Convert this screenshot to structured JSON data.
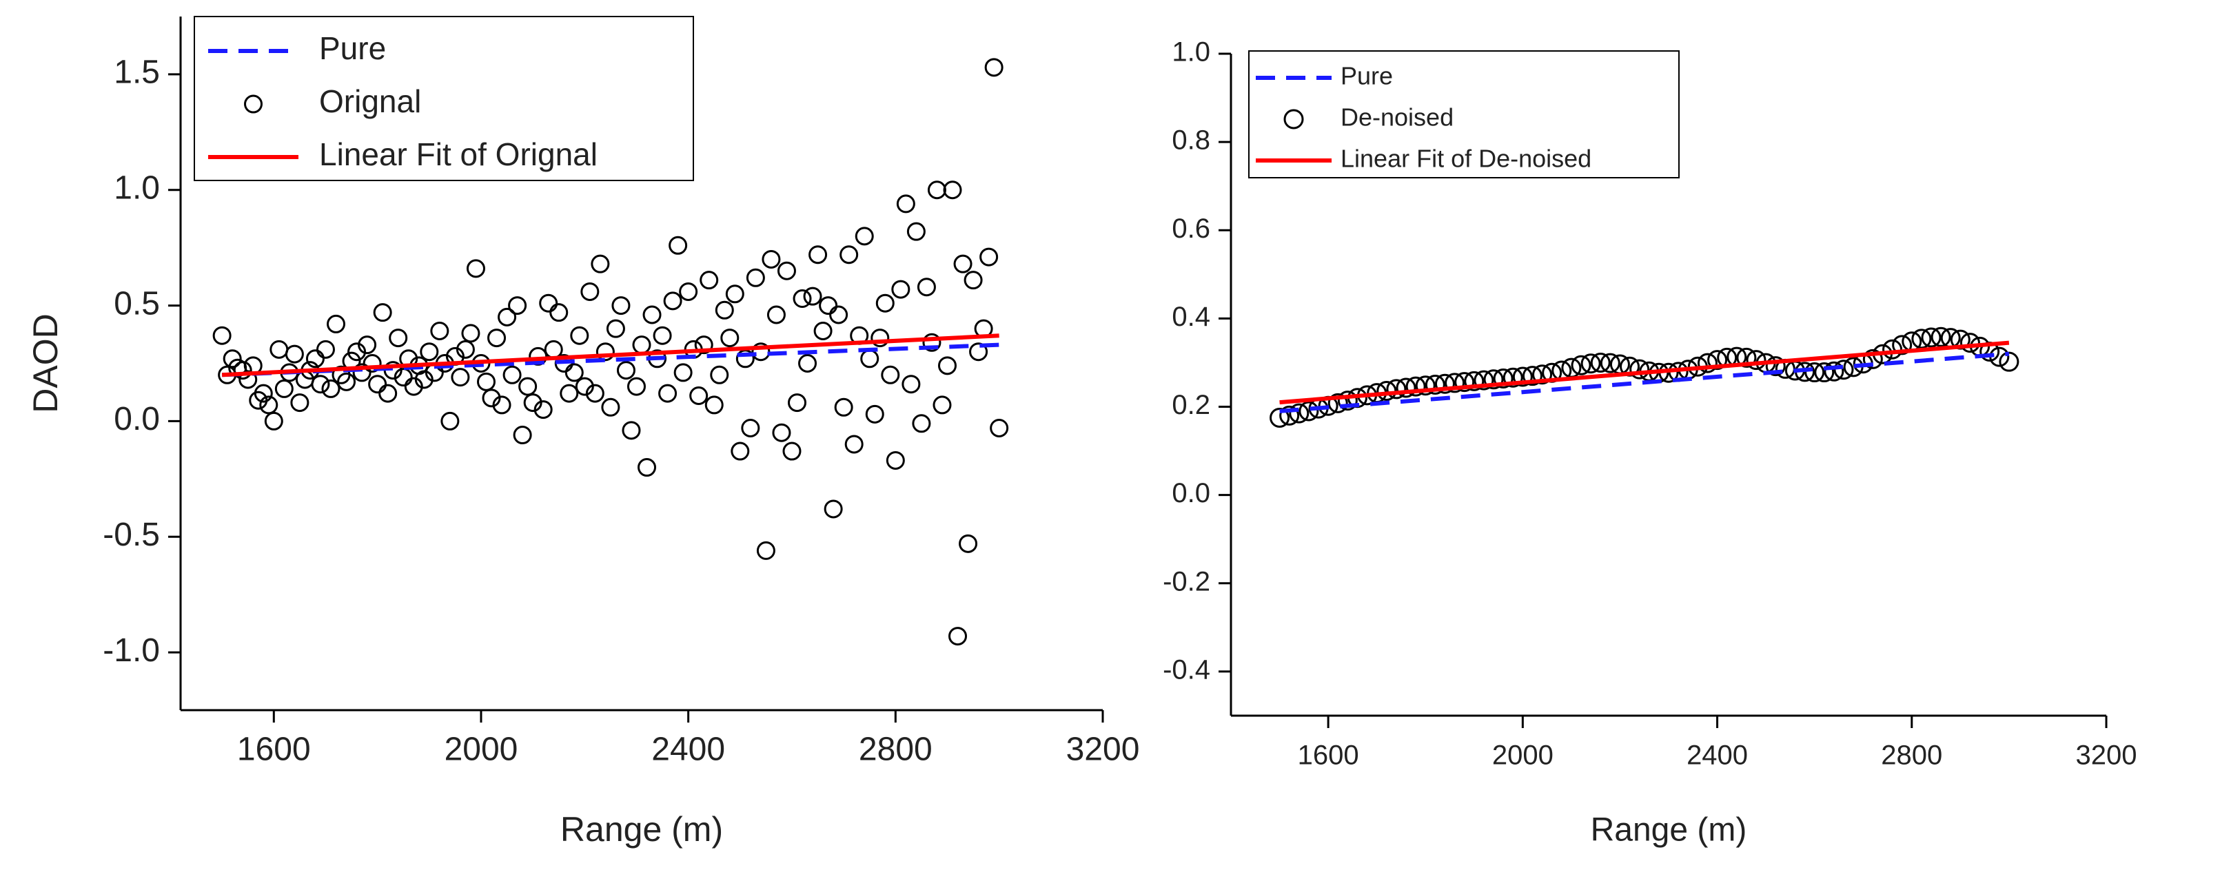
{
  "chart_data": [
    {
      "type": "scatter",
      "ylabel": "DAOD",
      "xlabel": "Range (m)",
      "xlim": [
        1420,
        3200
      ],
      "xticks": [
        1600,
        2000,
        2400,
        2800,
        3200
      ],
      "ylim": [
        -1.25,
        1.75
      ],
      "yticks": [
        {
          "value": -1,
          "label": "-1.0"
        },
        -0.5,
        {
          "value": 0,
          "label": "0.0"
        },
        0.5,
        {
          "value": 1,
          "label": "1.0"
        },
        1.5
      ],
      "legend": "upper left",
      "series": [
        {
          "name": "Pure",
          "color": "#1a1aff",
          "style": "dashed",
          "x": [
            1500,
            3000
          ],
          "values": [
            0.2,
            0.33
          ]
        },
        {
          "name": "Orignal",
          "color": "#000000",
          "style": "markers",
          "x": [
            1500,
            1510,
            1520,
            1530,
            1540,
            1550,
            1560,
            1570,
            1580,
            1590,
            1600,
            1610,
            1620,
            1630,
            1640,
            1650,
            1660,
            1670,
            1680,
            1690,
            1700,
            1710,
            1720,
            1730,
            1740,
            1750,
            1760,
            1770,
            1780,
            1790,
            1800,
            1810,
            1820,
            1830,
            1840,
            1850,
            1860,
            1870,
            1880,
            1890,
            1900,
            1910,
            1920,
            1930,
            1940,
            1950,
            1960,
            1970,
            1980,
            1990,
            2000,
            2010,
            2020,
            2030,
            2040,
            2050,
            2060,
            2070,
            2080,
            2090,
            2100,
            2110,
            2120,
            2130,
            2140,
            2150,
            2160,
            2170,
            2180,
            2190,
            2200,
            2210,
            2220,
            2230,
            2240,
            2250,
            2260,
            2270,
            2280,
            2290,
            2300,
            2310,
            2320,
            2330,
            2340,
            2350,
            2360,
            2370,
            2380,
            2390,
            2400,
            2410,
            2420,
            2430,
            2440,
            2450,
            2460,
            2470,
            2480,
            2490,
            2500,
            2510,
            2520,
            2530,
            2540,
            2550,
            2560,
            2570,
            2580,
            2590,
            2600,
            2610,
            2620,
            2630,
            2640,
            2650,
            2660,
            2670,
            2680,
            2690,
            2700,
            2710,
            2720,
            2730,
            2740,
            2750,
            2760,
            2770,
            2780,
            2790,
            2800,
            2810,
            2820,
            2830,
            2840,
            2850,
            2860,
            2870,
            2880,
            2890,
            2900,
            2910,
            2920,
            2930,
            2940,
            2950,
            2960,
            2970,
            2980,
            2990,
            3000
          ],
          "values": [
            0.37,
            0.2,
            0.27,
            0.23,
            0.22,
            0.18,
            0.24,
            0.09,
            0.12,
            0.07,
            0.0,
            0.31,
            0.14,
            0.21,
            0.29,
            0.08,
            0.18,
            0.22,
            0.27,
            0.16,
            0.31,
            0.14,
            0.42,
            0.2,
            0.17,
            0.26,
            0.3,
            0.21,
            0.33,
            0.25,
            0.16,
            0.47,
            0.12,
            0.22,
            0.36,
            0.19,
            0.27,
            0.15,
            0.24,
            0.18,
            0.3,
            0.21,
            0.39,
            0.25,
            0.0,
            0.28,
            0.19,
            0.31,
            0.38,
            0.66,
            0.25,
            0.17,
            0.1,
            0.36,
            0.07,
            0.45,
            0.2,
            0.5,
            -0.06,
            0.15,
            0.08,
            0.28,
            0.05,
            0.51,
            0.31,
            0.47,
            0.25,
            0.12,
            0.21,
            0.37,
            0.15,
            0.56,
            0.12,
            0.68,
            0.3,
            0.06,
            0.4,
            0.5,
            0.22,
            -0.04,
            0.15,
            0.33,
            -0.2,
            0.46,
            0.27,
            0.37,
            0.12,
            0.52,
            0.76,
            0.21,
            0.56,
            0.31,
            0.11,
            0.33,
            0.61,
            0.07,
            0.2,
            0.48,
            0.36,
            0.55,
            -0.13,
            0.27,
            -0.03,
            0.62,
            0.3,
            -0.56,
            0.7,
            0.46,
            -0.05,
            0.65,
            -0.13,
            0.08,
            0.53,
            0.25,
            0.54,
            0.72,
            0.39,
            0.5,
            -0.38,
            0.46,
            0.06,
            0.72,
            -0.1,
            0.37,
            0.8,
            0.27,
            0.03,
            0.36,
            0.51,
            0.2,
            -0.17,
            0.57,
            0.94,
            0.16,
            0.82,
            -0.01,
            0.58,
            0.34,
            1.0,
            0.07,
            0.24,
            1.0,
            -0.93,
            0.68,
            -0.53,
            0.61,
            0.3,
            0.4,
            0.71,
            1.53,
            -0.03
          ]
        },
        {
          "name": "Linear Fit of Orignal",
          "color": "#ff0000",
          "style": "solid",
          "x": [
            1500,
            3000
          ],
          "values": [
            0.2,
            0.37
          ]
        }
      ]
    },
    {
      "type": "scatter",
      "xlabel": "Range (m)",
      "xlim": [
        1400,
        3200
      ],
      "xticks": [
        1600,
        2000,
        2400,
        2800,
        3200
      ],
      "ylim": [
        -0.5,
        1.0
      ],
      "yticks": [
        -0.4,
        -0.2,
        {
          "value": 0,
          "label": "0.0"
        },
        0.2,
        0.4,
        0.6,
        0.8,
        {
          "value": 1,
          "label": "1.0"
        }
      ],
      "legend": "upper left",
      "series": [
        {
          "name": "Pure",
          "color": "#1a1aff",
          "style": "dashed",
          "x": [
            1500,
            3000
          ],
          "values": [
            0.19,
            0.32
          ]
        },
        {
          "name": "De-noised",
          "color": "#000000",
          "style": "markers",
          "x": [
            1500,
            1520,
            1540,
            1560,
            1580,
            1600,
            1620,
            1640,
            1660,
            1680,
            1700,
            1720,
            1740,
            1760,
            1780,
            1800,
            1820,
            1840,
            1860,
            1880,
            1900,
            1920,
            1940,
            1960,
            1980,
            2000,
            2020,
            2040,
            2060,
            2080,
            2100,
            2120,
            2140,
            2160,
            2180,
            2200,
            2220,
            2240,
            2260,
            2280,
            2300,
            2320,
            2340,
            2360,
            2380,
            2400,
            2420,
            2440,
            2460,
            2480,
            2500,
            2520,
            2540,
            2560,
            2580,
            2600,
            2620,
            2640,
            2660,
            2680,
            2700,
            2720,
            2740,
            2760,
            2780,
            2800,
            2820,
            2840,
            2860,
            2880,
            2900,
            2920,
            2940,
            2960,
            2980,
            3000
          ],
          "values": [
            0.175,
            0.18,
            0.185,
            0.19,
            0.196,
            0.202,
            0.208,
            0.214,
            0.22,
            0.226,
            0.231,
            0.236,
            0.24,
            0.243,
            0.246,
            0.248,
            0.25,
            0.252,
            0.254,
            0.256,
            0.258,
            0.26,
            0.262,
            0.264,
            0.266,
            0.268,
            0.27,
            0.273,
            0.277,
            0.282,
            0.288,
            0.294,
            0.298,
            0.3,
            0.299,
            0.296,
            0.291,
            0.285,
            0.28,
            0.277,
            0.277,
            0.279,
            0.284,
            0.291,
            0.299,
            0.306,
            0.311,
            0.313,
            0.311,
            0.306,
            0.299,
            0.292,
            0.286,
            0.282,
            0.279,
            0.278,
            0.278,
            0.28,
            0.284,
            0.29,
            0.298,
            0.308,
            0.319,
            0.33,
            0.34,
            0.348,
            0.354,
            0.357,
            0.358,
            0.356,
            0.352,
            0.345,
            0.336,
            0.325,
            0.313,
            0.302
          ]
        },
        {
          "name": "Linear Fit of De-noised",
          "color": "#ff0000",
          "style": "solid",
          "x": [
            1500,
            3000
          ],
          "values": [
            0.21,
            0.345
          ]
        }
      ]
    }
  ]
}
